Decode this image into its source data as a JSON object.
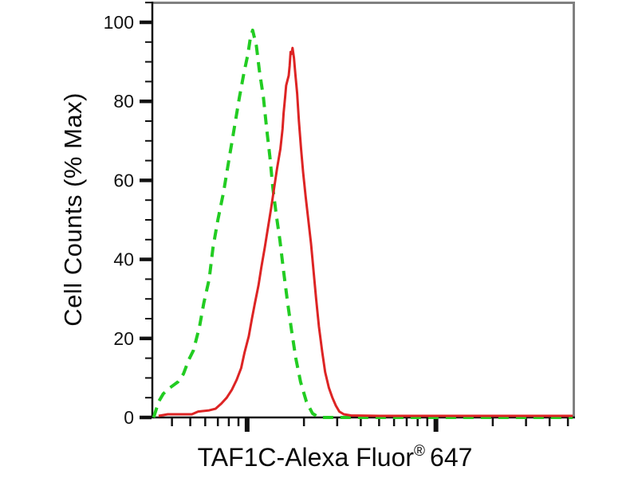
{
  "figure": {
    "background": "#ffffff",
    "axis_color": "#111111",
    "border_color": "#808080",
    "tick_label_color": "#111111"
  },
  "chart_data": {
    "type": "line",
    "subtype": "flow-cytometry-overlay-histogram",
    "title": "",
    "xlabel": "TAF1C-Alexa Fluor® 647",
    "xlabel_parts": {
      "pre": "TAF1C-Alexa Fluor",
      "sup": "®",
      "post": "647"
    },
    "ylabel": "Cell Counts (% Max)",
    "grid": false,
    "legend": null,
    "x_axis": {
      "scale": "log",
      "log10_min": 1.498,
      "log10_max": 3.728,
      "major_ticks": [
        100,
        1000
      ],
      "minor_ticks": [
        40,
        50,
        60,
        70,
        80,
        90,
        200,
        300,
        400,
        500,
        600,
        700,
        800,
        900,
        2000,
        3000,
        4000,
        5000
      ],
      "tick_labels_shown": false,
      "units": "fluorescence intensity (a.u., unlabeled)"
    },
    "y_axis": {
      "min": 0,
      "max": 105,
      "major_ticks": [
        0,
        20,
        40,
        60,
        80,
        100
      ],
      "labels": [
        "0",
        "20",
        "40",
        "60",
        "80",
        "100"
      ],
      "minor_tick_step": 5
    },
    "series": [
      {
        "name": "green-dashed-curve",
        "style": "dashed",
        "color": "#22cc22",
        "peak": {
          "x": 107,
          "y": 98
        },
        "points": [
          [
            32,
            0
          ],
          [
            34,
            4
          ],
          [
            36,
            6
          ],
          [
            39,
            7.5
          ],
          [
            43,
            9
          ],
          [
            46,
            11
          ],
          [
            49,
            14.5
          ],
          [
            52,
            17
          ],
          [
            56,
            23
          ],
          [
            59,
            29
          ],
          [
            63,
            35
          ],
          [
            66,
            43
          ],
          [
            70,
            50
          ],
          [
            75,
            57
          ],
          [
            80,
            65
          ],
          [
            86,
            74
          ],
          [
            91,
            81
          ],
          [
            96,
            87
          ],
          [
            101,
            92
          ],
          [
            104,
            96
          ],
          [
            107,
            98
          ],
          [
            112,
            94
          ],
          [
            116,
            88
          ],
          [
            122,
            81
          ],
          [
            127,
            73
          ],
          [
            132,
            66
          ],
          [
            137,
            58
          ],
          [
            143,
            51
          ],
          [
            149,
            45
          ],
          [
            156,
            37
          ],
          [
            164,
            29
          ],
          [
            172,
            22
          ],
          [
            181,
            15
          ],
          [
            192,
            9
          ],
          [
            206,
            4
          ],
          [
            222,
            1
          ],
          [
            240,
            0
          ],
          [
            300,
            0
          ],
          [
            400,
            0
          ],
          [
            600,
            0
          ],
          [
            1000,
            0
          ],
          [
            2000,
            0
          ],
          [
            3500,
            0
          ],
          [
            5300,
            0
          ]
        ]
      },
      {
        "name": "red-solid-curve",
        "style": "solid",
        "color": "#dd2424",
        "peak": {
          "x": 174,
          "y": 93.5
        },
        "points": [
          [
            34,
            0.4
          ],
          [
            38,
            0.8
          ],
          [
            51,
            0.8
          ],
          [
            55,
            1.5
          ],
          [
            63,
            1.8
          ],
          [
            68,
            2.2
          ],
          [
            73,
            3.5
          ],
          [
            78,
            5
          ],
          [
            83,
            7
          ],
          [
            88,
            9.5
          ],
          [
            93,
            12.5
          ],
          [
            97,
            16.5
          ],
          [
            102,
            20.5
          ],
          [
            106,
            25
          ],
          [
            110,
            29
          ],
          [
            115,
            33.5
          ],
          [
            119,
            38
          ],
          [
            124,
            43
          ],
          [
            129,
            48
          ],
          [
            134,
            53
          ],
          [
            139,
            58
          ],
          [
            144,
            63
          ],
          [
            150,
            68
          ],
          [
            154,
            73
          ],
          [
            156,
            77
          ],
          [
            159,
            81
          ],
          [
            161,
            84
          ],
          [
            164,
            85.5
          ],
          [
            166,
            86.5
          ],
          [
            168,
            89
          ],
          [
            170,
            92.5
          ],
          [
            172,
            92
          ],
          [
            174,
            93.5
          ],
          [
            177,
            91
          ],
          [
            180,
            87
          ],
          [
            184,
            82
          ],
          [
            188,
            75
          ],
          [
            193,
            68
          ],
          [
            198,
            62
          ],
          [
            204,
            56
          ],
          [
            211,
            50
          ],
          [
            218,
            44
          ],
          [
            225,
            37
          ],
          [
            232,
            30
          ],
          [
            240,
            23
          ],
          [
            250,
            16.5
          ],
          [
            259,
            11.5
          ],
          [
            271,
            7.5
          ],
          [
            283,
            5
          ],
          [
            295,
            3
          ],
          [
            308,
            1.5
          ],
          [
            325,
            0.8
          ],
          [
            355,
            0.5
          ],
          [
            500,
            0.4
          ],
          [
            1000,
            0.4
          ],
          [
            2500,
            0.4
          ],
          [
            5300,
            0.4
          ]
        ]
      }
    ]
  }
}
